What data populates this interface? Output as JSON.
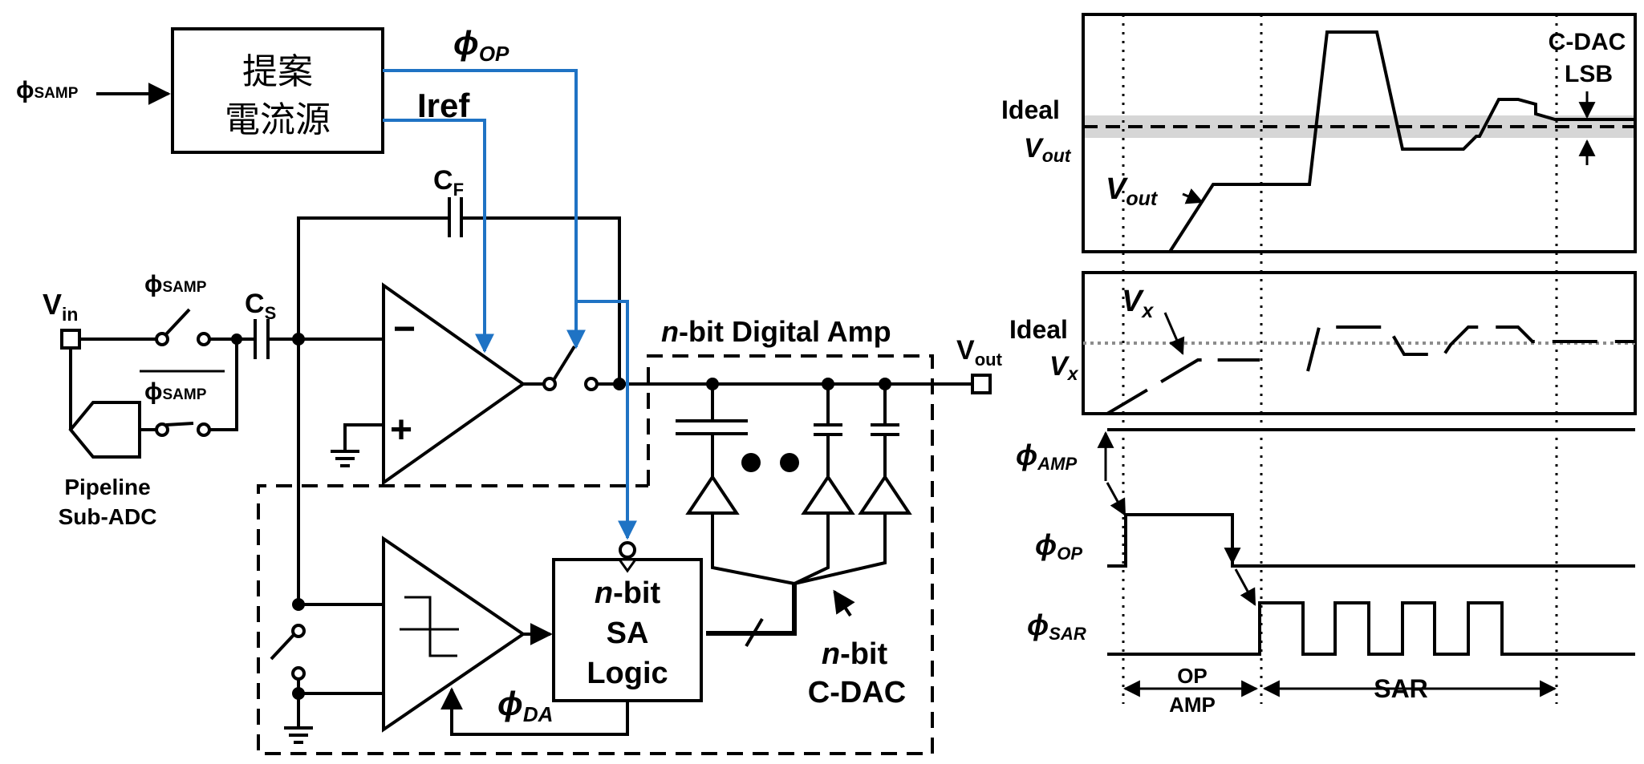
{
  "colors": {
    "wire": "#000000",
    "control": "#1f73c4",
    "band": "#d6d6d6",
    "dotted_ref": "#8c8c8c"
  },
  "circuit": {
    "phi_samp_input": {
      "sym": "ϕ",
      "sub": "SAMP"
    },
    "current_source": {
      "line1": "提案",
      "line2": "電流源"
    },
    "phi_op": {
      "sym": "ϕ",
      "sub": "OP"
    },
    "iref": "Iref",
    "cf": {
      "main": "C",
      "sub": "F"
    },
    "vin": {
      "main": "V",
      "sub": "in"
    },
    "phi_samp_switch": {
      "sym": "ϕ",
      "sub": "SAMP"
    },
    "cs": {
      "main": "C",
      "sub": "S"
    },
    "phi_samp_bar": {
      "sym": "ϕ",
      "sub": "SAMP"
    },
    "opamp_minus": "−",
    "opamp_plus": "+",
    "digital_amp": {
      "n": "n",
      "rest": "-bit Digital Amp"
    },
    "vout": {
      "main": "V",
      "sub": "out"
    },
    "pipeline": {
      "line1": "Pipeline",
      "line2": "Sub-ADC"
    },
    "sa_logic": {
      "n": "n",
      "line1_rest": "-bit",
      "line2": "SA",
      "line3": "Logic"
    },
    "phi_da": {
      "sym": "ϕ",
      "sub": "DA"
    },
    "cdac": {
      "n": "n",
      "line1_rest": "-bit",
      "line2": "C-DAC"
    }
  },
  "timing": {
    "cdac_lsb": {
      "line1": "C-DAC",
      "line2": "LSB"
    },
    "ideal_vout": {
      "line1": "Ideal",
      "main": "V",
      "sub": "out"
    },
    "vout_curve": {
      "main": "V",
      "sub": "out"
    },
    "vx_curve": {
      "main": "V",
      "sub": "x"
    },
    "ideal_vx": {
      "line1": "Ideal",
      "main": "V",
      "sub": "x"
    },
    "phi_amp": {
      "sym": "ϕ",
      "sub": "AMP"
    },
    "phi_op": {
      "sym": "ϕ",
      "sub": "OP"
    },
    "phi_sar": {
      "sym": "ϕ",
      "sub": "SAR"
    },
    "op_amp_phase": {
      "line1": "OP",
      "line2": "AMP"
    },
    "sar_phase": "SAR"
  }
}
